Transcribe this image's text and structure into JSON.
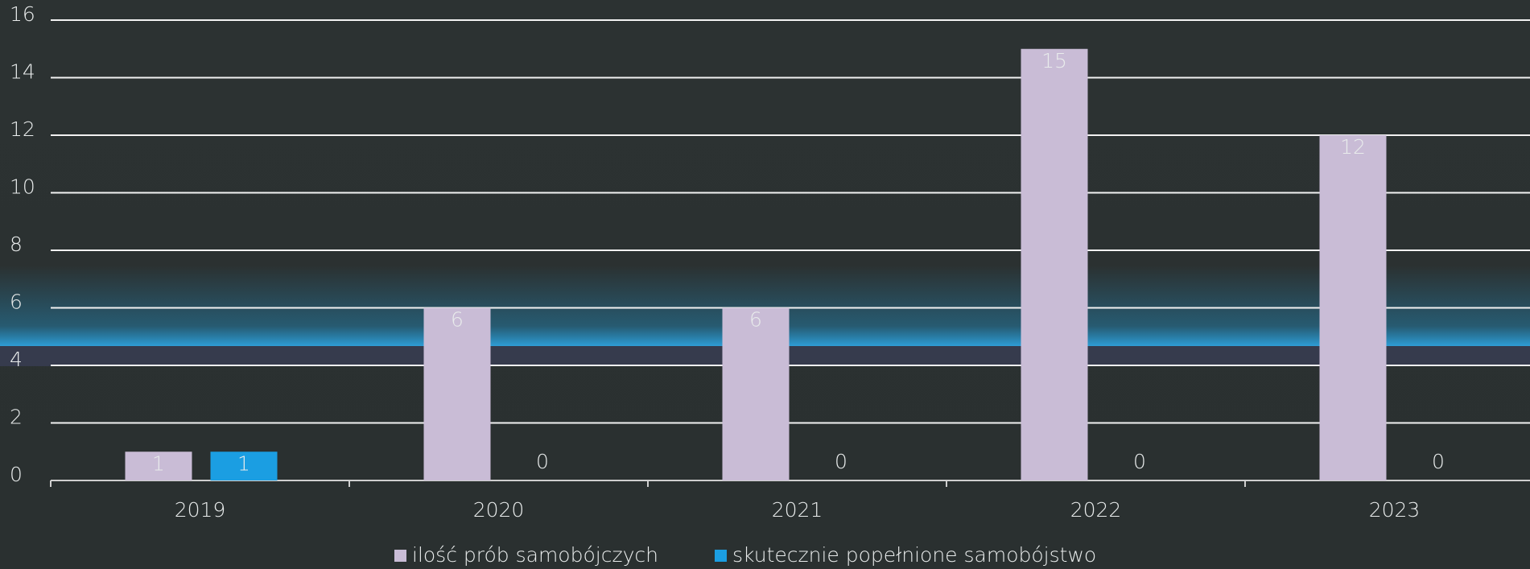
{
  "chart_data": {
    "type": "bar",
    "categories": [
      "2019",
      "2020",
      "2021",
      "2022",
      "2023"
    ],
    "series": [
      {
        "name": "ilość prób samobójczych",
        "color": "#c9bcd6",
        "values": [
          1,
          6,
          6,
          15,
          12
        ]
      },
      {
        "name": "skutecznie popełnione samobójstwo",
        "color": "#1b9ee2",
        "values": [
          1,
          0,
          0,
          0,
          0
        ]
      }
    ],
    "ylim": [
      0,
      16
    ],
    "yticks": [
      0,
      2,
      4,
      6,
      8,
      10,
      12,
      14,
      16
    ],
    "grid": true,
    "legend": "bottom"
  }
}
